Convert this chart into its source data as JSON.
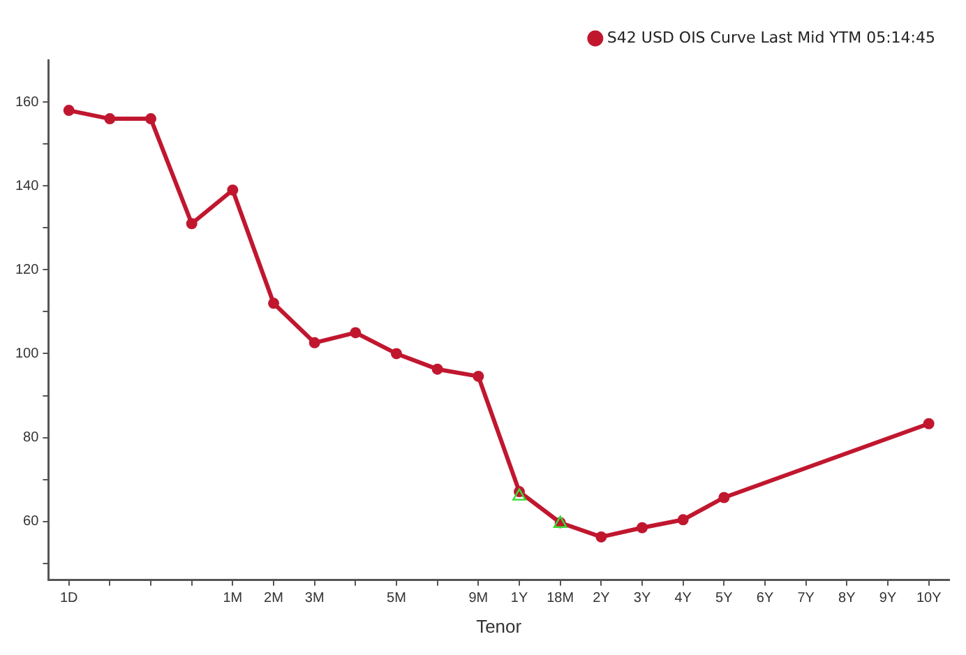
{
  "chart_data": {
    "type": "line",
    "xlabel": "Tenor",
    "legend": "top right",
    "grid": false,
    "marker": "circle",
    "line_style": "solid",
    "categories": [
      "1D",
      null,
      null,
      null,
      "1M",
      "2M",
      "3M",
      null,
      "5M",
      null,
      "9M",
      "1Y",
      "18M",
      "2Y",
      "3Y",
      "4Y",
      "5Y",
      "6Y",
      "7Y",
      "8Y",
      "9Y",
      "10Y"
    ],
    "ylim": [
      46,
      170
    ],
    "yticks": [
      {
        "value": 50,
        "label": null
      },
      60,
      {
        "value": 70,
        "label": null
      },
      80,
      {
        "value": 90,
        "label": null
      },
      100,
      {
        "value": 110,
        "label": null
      },
      120,
      {
        "value": 130,
        "label": null
      },
      140,
      {
        "value": 150,
        "label": null
      },
      160
    ],
    "series": [
      {
        "name": "S42 USD OIS Curve Last Mid YTM 05:14:45",
        "color": "#c0172f",
        "values": [
          158,
          156,
          156,
          131,
          139,
          112,
          102.6,
          105,
          100,
          96.3,
          94.6,
          67.1,
          59.7,
          56.3,
          58.5,
          60.4,
          65.7,
          null,
          null,
          null,
          null,
          83.3
        ]
      },
      {
        "type": "scatter",
        "color": "#33dd33",
        "marker": "triangle",
        "x": [
          "1Y",
          "18M"
        ],
        "values": [
          66,
          59.5
        ]
      }
    ]
  }
}
